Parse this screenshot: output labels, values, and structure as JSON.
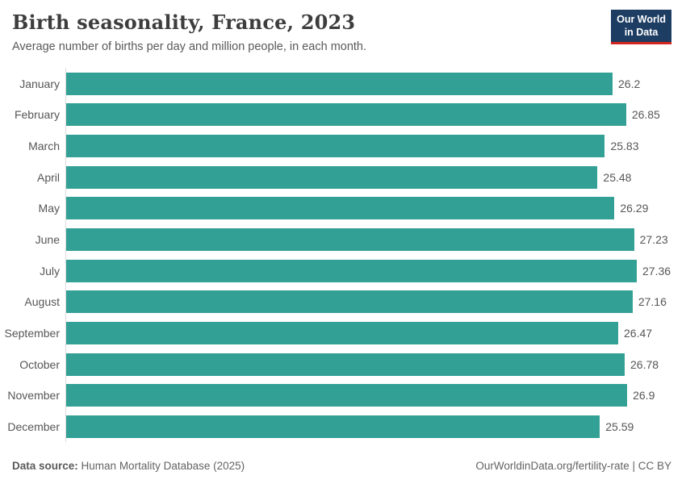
{
  "header": {
    "logo": {
      "line1": "Our World",
      "line2": "in Data"
    }
  },
  "chart_data": {
    "type": "bar",
    "orientation": "horizontal",
    "title": "Birth seasonality, France, 2023",
    "subtitle": "Average number of births per day and million people, in each month.",
    "categories": [
      "January",
      "February",
      "March",
      "April",
      "May",
      "June",
      "July",
      "August",
      "September",
      "October",
      "November",
      "December"
    ],
    "values": [
      26.2,
      26.85,
      25.83,
      25.48,
      26.29,
      27.23,
      27.36,
      27.16,
      26.47,
      26.78,
      26.9,
      25.59
    ],
    "value_labels": [
      "26.2",
      "26.85",
      "25.83",
      "25.48",
      "26.29",
      "27.23",
      "27.36",
      "27.16",
      "26.47",
      "26.78",
      "26.9",
      "25.59"
    ],
    "xlabel": "",
    "ylabel": "",
    "xlim": [
      0,
      27.36
    ],
    "grid": false,
    "legend": false,
    "bar_color": "#32a094",
    "axis_line_color": "#dadada"
  },
  "footer": {
    "source_label": "Data source:",
    "source_value": "Human Mortality Database (2025)",
    "credit": "OurWorldinData.org/fertility-rate | CC BY"
  }
}
